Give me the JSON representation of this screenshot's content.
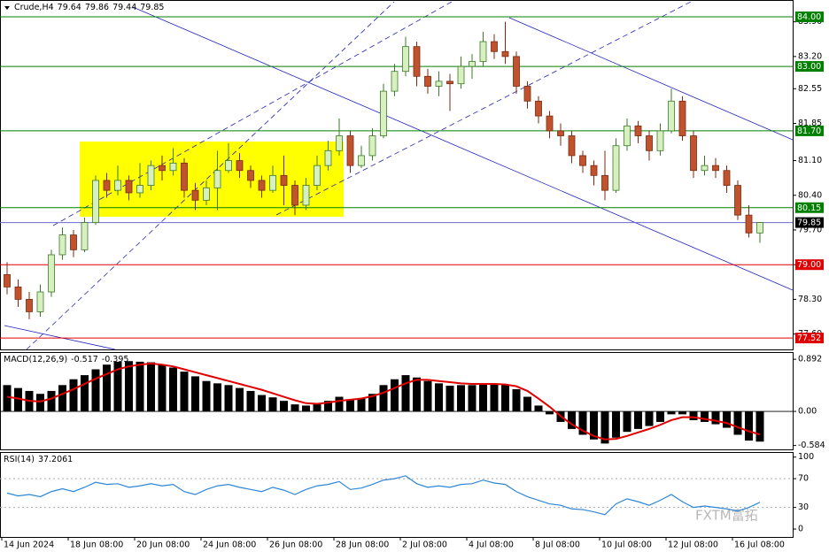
{
  "chart_data": [
    {
      "type": "candlestick",
      "title": "Crude,H4",
      "categories": [
        "14 Jun 2024",
        null,
        null,
        null,
        null,
        null,
        "18 Jun 08:00",
        null,
        null,
        null,
        null,
        null,
        "20 Jun 08:00",
        null,
        null,
        null,
        null,
        null,
        "24 Jun 08:00",
        null,
        null,
        null,
        null,
        null,
        "26 Jun 08:00",
        null,
        null,
        null,
        null,
        null,
        "28 Jun 08:00",
        null,
        null,
        null,
        null,
        null,
        "2 Jul 08:00",
        null,
        null,
        null,
        null,
        null,
        "4 Jul 08:00",
        null,
        null,
        null,
        null,
        null,
        "8 Jul 08:00",
        null,
        null,
        null,
        null,
        null,
        "10 Jul 08:00",
        null,
        null,
        null,
        null,
        null,
        "12 Jul 08:00",
        null,
        null,
        null,
        null,
        null,
        "16 Jul 08:00",
        null,
        null
      ],
      "open": [
        78.8,
        78.55,
        78.3,
        78.05,
        78.45,
        79.2,
        79.6,
        79.3,
        79.85,
        80.7,
        80.5,
        80.7,
        80.45,
        80.6,
        81.0,
        80.9,
        81.05,
        80.5,
        80.3,
        80.55,
        80.9,
        81.1,
        80.9,
        80.7,
        80.5,
        80.8,
        80.6,
        80.2,
        80.6,
        81.0,
        81.3,
        81.6,
        81.0,
        81.2,
        81.6,
        82.5,
        82.9,
        83.4,
        82.8,
        82.6,
        82.7,
        82.65,
        83.0,
        83.1,
        83.5,
        83.3,
        83.2,
        82.6,
        82.3,
        82.0,
        81.7,
        81.6,
        81.2,
        81.0,
        80.8,
        80.5,
        81.4,
        81.8,
        81.6,
        81.3,
        81.7,
        82.3,
        81.6,
        80.9,
        81.0,
        80.9,
        80.6,
        80.0,
        79.64
      ],
      "high": [
        79.05,
        78.7,
        78.45,
        78.6,
        79.3,
        79.75,
        79.7,
        79.95,
        80.8,
        80.85,
        81.0,
        80.8,
        81.05,
        81.1,
        81.2,
        81.35,
        81.15,
        80.65,
        80.7,
        81.3,
        81.45,
        81.25,
        81.0,
        80.8,
        81.0,
        81.2,
        80.7,
        80.75,
        81.2,
        81.5,
        81.95,
        81.7,
        81.4,
        81.75,
        82.65,
        83.05,
        83.6,
        83.5,
        82.95,
        82.9,
        82.85,
        83.2,
        83.25,
        83.7,
        83.65,
        83.9,
        83.3,
        82.7,
        82.4,
        82.1,
        81.85,
        81.7,
        81.3,
        81.1,
        81.3,
        81.55,
        81.95,
        81.9,
        81.7,
        81.85,
        82.55,
        82.4,
        81.7,
        81.2,
        81.15,
        81.0,
        80.7,
        80.2,
        79.86
      ],
      "low": [
        78.4,
        78.15,
        77.9,
        77.95,
        78.35,
        79.1,
        79.15,
        79.25,
        79.8,
        80.35,
        80.4,
        80.3,
        80.35,
        80.5,
        80.7,
        80.8,
        80.35,
        80.1,
        80.2,
        80.1,
        80.85,
        80.75,
        80.55,
        80.35,
        80.45,
        80.2,
        80.0,
        80.1,
        80.5,
        80.9,
        81.2,
        80.85,
        80.95,
        81.1,
        81.55,
        82.4,
        82.8,
        82.6,
        82.45,
        82.4,
        82.1,
        82.55,
        82.75,
        83.0,
        83.15,
        83.05,
        82.45,
        82.15,
        81.85,
        81.55,
        81.4,
        81.05,
        80.85,
        80.6,
        80.3,
        80.45,
        81.3,
        81.45,
        81.1,
        81.2,
        81.65,
        81.5,
        80.75,
        80.8,
        80.75,
        80.45,
        79.9,
        79.55,
        79.44
      ],
      "close": [
        78.55,
        78.3,
        78.05,
        78.45,
        79.2,
        79.6,
        79.3,
        79.85,
        80.7,
        80.5,
        80.7,
        80.45,
        80.6,
        81.0,
        80.9,
        81.05,
        80.5,
        80.3,
        80.55,
        80.9,
        81.1,
        80.9,
        80.7,
        80.5,
        80.8,
        80.6,
        80.2,
        80.6,
        81.0,
        81.3,
        81.6,
        81.0,
        81.2,
        81.6,
        82.5,
        82.9,
        83.4,
        82.8,
        82.6,
        82.7,
        82.65,
        83.0,
        83.1,
        83.5,
        83.3,
        83.2,
        82.6,
        82.3,
        82.0,
        81.7,
        81.6,
        81.2,
        81.0,
        80.8,
        80.5,
        81.4,
        81.8,
        81.6,
        81.3,
        81.7,
        82.3,
        81.6,
        80.9,
        81.0,
        80.9,
        80.6,
        80.0,
        79.64,
        79.85
      ],
      "up_color": "#d8f0c0",
      "up_stroke": "#3c7a28",
      "down_color": "#c0522d",
      "down_stroke": "#7a2a10",
      "ylim": [
        77.29,
        84.34
      ],
      "yticks": [
        {
          "value": 83.9,
          "label": "83.90"
        },
        {
          "value": 83.2,
          "label": "83.20"
        },
        {
          "value": 82.55,
          "label": "82.55"
        },
        {
          "value": 81.85,
          "label": "81.85"
        },
        {
          "value": 81.1,
          "label": "81.10"
        },
        {
          "value": 80.4,
          "label": "80.40"
        },
        {
          "value": 79.7,
          "label": "79.70"
        },
        {
          "value": 79,
          "label": "79.00"
        },
        {
          "value": 78.3,
          "label": "78.30"
        },
        {
          "value": 77.6,
          "label": "77.60"
        }
      ],
      "levels": [
        {
          "value": 84,
          "label": "84.00",
          "color": "#008000"
        },
        {
          "value": 83,
          "label": "83.00",
          "color": "#008000"
        },
        {
          "value": 81.7,
          "label": "81.70",
          "color": "#008000"
        },
        {
          "value": 80.15,
          "label": "80.15",
          "color": "#008000"
        },
        {
          "value": 79.85,
          "label": "79.85",
          "color": "#000000",
          "line_color": "#6a6ad0"
        },
        {
          "value": 79,
          "label": "79.00",
          "color": "#e00000"
        },
        {
          "value": 77.52,
          "label": "77.52",
          "color": "#e00000"
        }
      ]
    },
    {
      "type": "macd",
      "title": "MACD(12,26,9)",
      "histogram": {
        "color": "#000000",
        "values": [
          0.45,
          0.4,
          0.35,
          0.3,
          0.35,
          0.45,
          0.55,
          0.62,
          0.72,
          0.8,
          0.85,
          0.86,
          0.85,
          0.84,
          0.8,
          0.75,
          0.68,
          0.6,
          0.52,
          0.48,
          0.45,
          0.4,
          0.35,
          0.28,
          0.24,
          0.18,
          0.12,
          0.1,
          0.13,
          0.18,
          0.25,
          0.2,
          0.22,
          0.3,
          0.45,
          0.55,
          0.62,
          0.58,
          0.52,
          0.48,
          0.44,
          0.45,
          0.45,
          0.48,
          0.46,
          0.45,
          0.38,
          0.25,
          0.1,
          -0.05,
          -0.18,
          -0.3,
          -0.4,
          -0.48,
          -0.55,
          -0.45,
          -0.35,
          -0.3,
          -0.25,
          -0.18,
          -0.05,
          -0.05,
          -0.15,
          -0.18,
          -0.22,
          -0.28,
          -0.4,
          -0.5,
          -0.517
        ]
      },
      "signal": {
        "color": "#e00000",
        "values": [
          0.25,
          0.22,
          0.18,
          0.17,
          0.22,
          0.3,
          0.38,
          0.47,
          0.56,
          0.64,
          0.72,
          0.77,
          0.8,
          0.82,
          0.8,
          0.77,
          0.72,
          0.67,
          0.62,
          0.57,
          0.52,
          0.47,
          0.42,
          0.37,
          0.31,
          0.25,
          0.19,
          0.14,
          0.13,
          0.15,
          0.18,
          0.2,
          0.22,
          0.26,
          0.32,
          0.4,
          0.48,
          0.54,
          0.54,
          0.52,
          0.5,
          0.48,
          0.47,
          0.47,
          0.47,
          0.46,
          0.43,
          0.35,
          0.22,
          0.08,
          -0.08,
          -0.22,
          -0.33,
          -0.42,
          -0.48,
          -0.47,
          -0.42,
          -0.36,
          -0.3,
          -0.23,
          -0.15,
          -0.1,
          -0.1,
          -0.13,
          -0.16,
          -0.2,
          -0.27,
          -0.34,
          -0.395
        ]
      },
      "ylim": [
        -0.65,
        1.015
      ],
      "yticks": [
        0.892,
        {
          "value": 0,
          "label": "0.00"
        },
        -0.584
      ]
    },
    {
      "type": "line",
      "title": "RSI(14)",
      "color": "#2f86d8",
      "values": [
        50,
        46,
        48,
        45,
        52,
        56,
        52,
        58,
        65,
        62,
        63,
        58,
        60,
        63,
        60,
        62,
        52,
        48,
        55,
        60,
        62,
        58,
        55,
        52,
        58,
        54,
        48,
        55,
        60,
        62,
        66,
        55,
        57,
        62,
        68,
        70,
        74,
        63,
        58,
        60,
        58,
        62,
        63,
        68,
        64,
        62,
        52,
        45,
        40,
        35,
        33,
        28,
        27,
        24,
        20,
        35,
        42,
        38,
        33,
        40,
        48,
        38,
        30,
        32,
        30,
        28,
        25,
        30,
        37.2061
      ],
      "ylim": [
        -11,
        107
      ],
      "yticks": [
        100,
        70,
        30,
        0
      ],
      "grid_levels": [
        70,
        30
      ]
    }
  ],
  "watermark": "FXTM富拓"
}
